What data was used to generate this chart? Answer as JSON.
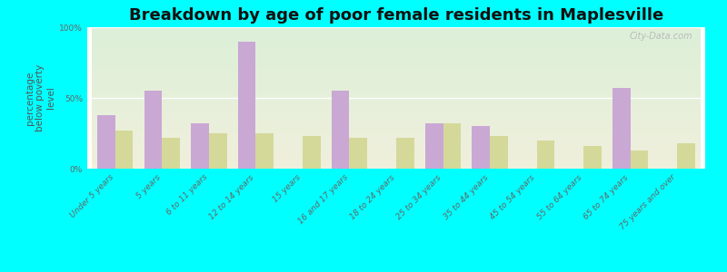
{
  "title": "Breakdown by age of poor female residents in Maplesville",
  "ylabel": "percentage\nbelow poverty\nlevel",
  "categories": [
    "Under 5 years",
    "5 years",
    "6 to 11 years",
    "12 to 14 years",
    "15 years",
    "16 and 17 years",
    "18 to 24 years",
    "25 to 34 years",
    "35 to 44 years",
    "45 to 54 years",
    "55 to 64 years",
    "65 to 74 years",
    "75 years and over"
  ],
  "maplesville": [
    38,
    55,
    32,
    90,
    0,
    55,
    0,
    32,
    30,
    0,
    0,
    57,
    0
  ],
  "alabama": [
    27,
    22,
    25,
    25,
    23,
    22,
    22,
    32,
    23,
    20,
    16,
    13,
    18
  ],
  "maplesville_color": "#c9a8d4",
  "alabama_color": "#d4d99a",
  "background_color": "#00ffff",
  "plot_bg_top": "#dcefd8",
  "plot_bg_bottom": "#f0f0dc",
  "ylim": [
    0,
    100
  ],
  "bar_width": 0.38,
  "title_fontsize": 13,
  "ylabel_fontsize": 7.5,
  "tick_fontsize": 6.5,
  "legend_fontsize": 9
}
